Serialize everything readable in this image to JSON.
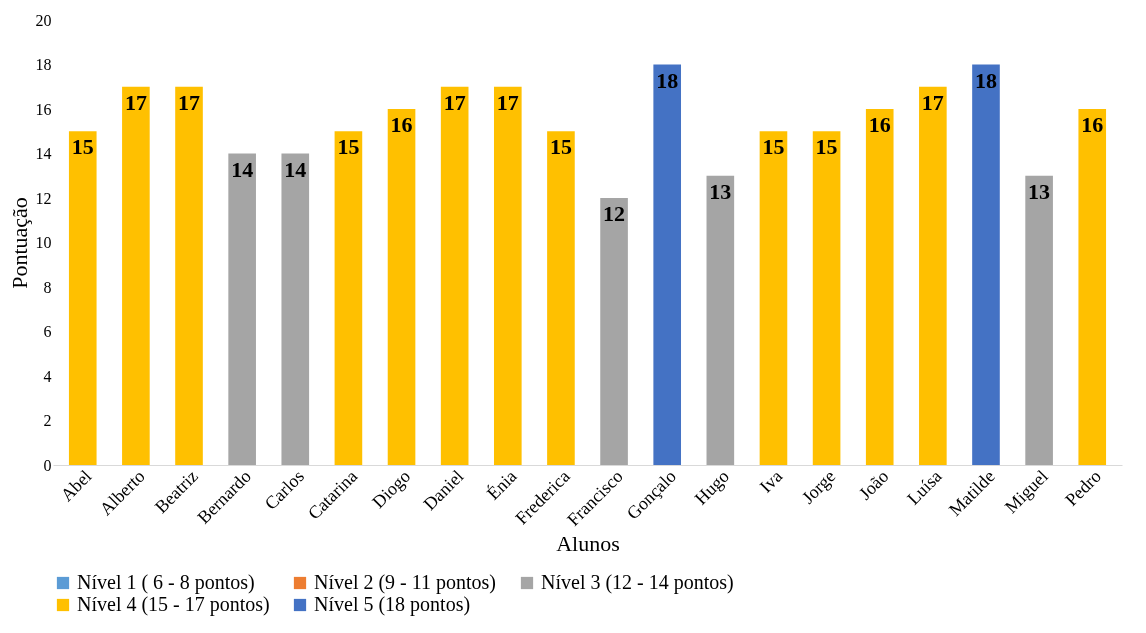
{
  "chart_data": {
    "type": "bar",
    "xlabel": "Alunos",
    "ylabel": "Pontuação",
    "categories": [
      "Abel",
      "Alberto",
      "Beatriz",
      "Bernardo",
      "Carlos",
      "Catarina",
      "Diogo",
      "Daniel",
      "Énia",
      "Frederica",
      "Francisco",
      "Gonçalo",
      "Hugo",
      "Iva",
      "Jorge",
      "João",
      "Luísa",
      "Matilde",
      "Miguel",
      "Pedro"
    ],
    "series": [
      {
        "name": "Nível 1 ( 6 - 8 pontos)",
        "color": "#5b9bd5",
        "values": [
          null,
          null,
          null,
          null,
          null,
          null,
          null,
          null,
          null,
          null,
          null,
          null,
          null,
          null,
          null,
          null,
          null,
          null,
          null,
          null
        ]
      },
      {
        "name": "Nível 2 (9 - 11 pontos)",
        "color": "#ed7d31",
        "values": [
          null,
          null,
          null,
          null,
          null,
          null,
          null,
          null,
          null,
          null,
          null,
          null,
          null,
          null,
          null,
          null,
          null,
          null,
          null,
          null
        ]
      },
      {
        "name": "Nível 3 (12 - 14 pontos)",
        "color": "#a5a5a5",
        "values": [
          null,
          null,
          null,
          14,
          14,
          null,
          null,
          null,
          null,
          null,
          12,
          null,
          13,
          null,
          null,
          null,
          null,
          null,
          13,
          null
        ]
      },
      {
        "name": "Nível 4 (15 - 17 pontos)",
        "color": "#ffc000",
        "values": [
          15,
          17,
          17,
          null,
          null,
          15,
          16,
          17,
          17,
          15,
          null,
          null,
          null,
          15,
          15,
          16,
          17,
          null,
          null,
          16
        ]
      },
      {
        "name": "Nível 5 (18 pontos)",
        "color": "#4472c4",
        "values": [
          null,
          null,
          null,
          null,
          null,
          null,
          null,
          null,
          null,
          null,
          null,
          18,
          null,
          null,
          null,
          null,
          null,
          18,
          null,
          null
        ]
      }
    ],
    "ylim": [
      0,
      20
    ],
    "yticks": [
      0,
      2,
      4,
      6,
      8,
      10,
      12,
      14,
      16,
      18,
      20
    ],
    "data_labels": true,
    "legend": "bottom"
  }
}
